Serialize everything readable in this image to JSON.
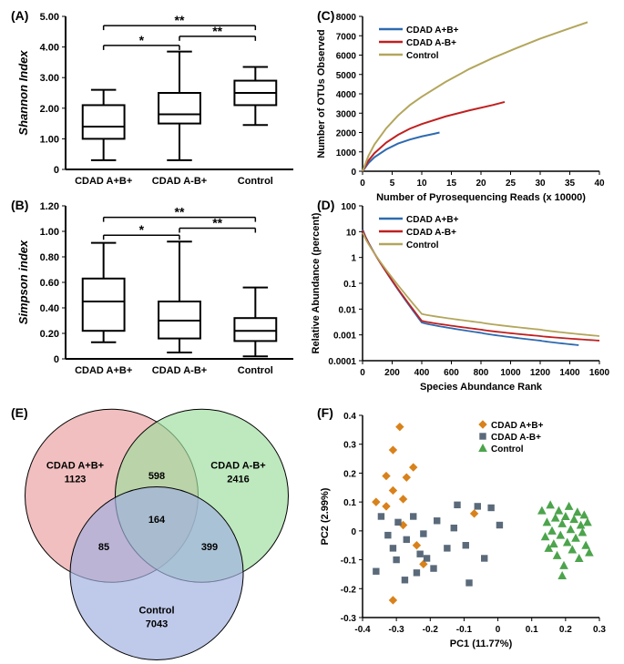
{
  "colors": {
    "blue": "#2e6ab0",
    "red": "#c02020",
    "olive": "#b3a65c",
    "orange": "#d9821b",
    "gray": "#5a6a7a",
    "green": "#4ca44c",
    "venn_red": "#eaa0a0",
    "venn_green": "#9fdd9f",
    "venn_blue": "#a0b0e0",
    "black": "#000000",
    "white": "#ffffff"
  },
  "panelA": {
    "label": "(A)",
    "ylabel": "Shannon Index",
    "ylim": [
      0,
      5.0
    ],
    "yticks": [
      0,
      1.0,
      2.0,
      3.0,
      4.0,
      5.0
    ],
    "ytick_labels": [
      "0",
      "1.00",
      "2.00",
      "3.00",
      "4.00",
      "5.00"
    ],
    "categories": [
      "CDAD A+B+",
      "CDAD A-B+",
      "Control"
    ],
    "boxes": [
      {
        "whisker_low": 0.3,
        "q1": 1.0,
        "median": 1.4,
        "q3": 2.1,
        "whisker_high": 2.6
      },
      {
        "whisker_low": 0.3,
        "q1": 1.5,
        "median": 1.8,
        "q3": 2.5,
        "whisker_high": 3.85
      },
      {
        "whisker_low": 1.45,
        "q1": 2.1,
        "median": 2.5,
        "q3": 2.9,
        "whisker_high": 3.35
      }
    ],
    "sig_bars": [
      {
        "from": 0,
        "to": 1,
        "y": 4.05,
        "label": "*"
      },
      {
        "from": 1,
        "to": 2,
        "y": 4.35,
        "label": "**"
      },
      {
        "from": 0,
        "to": 2,
        "y": 4.7,
        "label": "**"
      }
    ]
  },
  "panelB": {
    "label": "(B)",
    "ylabel": "Simpson index",
    "ylim": [
      0,
      1.2
    ],
    "yticks": [
      0,
      0.2,
      0.4,
      0.6,
      0.8,
      1.0,
      1.2
    ],
    "ytick_labels": [
      "0",
      "0.20",
      "0.40",
      "0.60",
      "0.80",
      "1.00",
      "1.20"
    ],
    "categories": [
      "CDAD A+B+",
      "CDAD A-B+",
      "Control"
    ],
    "boxes": [
      {
        "whisker_low": 0.13,
        "q1": 0.22,
        "median": 0.45,
        "q3": 0.63,
        "whisker_high": 0.91
      },
      {
        "whisker_low": 0.05,
        "q1": 0.16,
        "median": 0.3,
        "q3": 0.45,
        "whisker_high": 0.92
      },
      {
        "whisker_low": 0.02,
        "q1": 0.14,
        "median": 0.22,
        "q3": 0.32,
        "whisker_high": 0.56
      }
    ],
    "sig_bars": [
      {
        "from": 0,
        "to": 1,
        "y": 0.97,
        "label": "*"
      },
      {
        "from": 1,
        "to": 2,
        "y": 1.025,
        "label": "**"
      },
      {
        "from": 0,
        "to": 2,
        "y": 1.11,
        "label": "**"
      }
    ]
  },
  "panelC": {
    "label": "(C)",
    "xlabel": "Number of Pyrosequencing Reads (x 10000)",
    "ylabel": "Number of OTUs Observed",
    "xlim": [
      0,
      40
    ],
    "ylim": [
      0,
      8000
    ],
    "xticks": [
      0,
      5,
      10,
      15,
      20,
      25,
      30,
      35,
      40
    ],
    "yticks": [
      0,
      1000,
      2000,
      3000,
      4000,
      5000,
      6000,
      7000,
      8000
    ],
    "legend": [
      "CDAD A+B+",
      "CDAD A-B+",
      "Control"
    ],
    "legend_colors": [
      "#2e6ab0",
      "#c02020",
      "#b3a65c"
    ],
    "series": [
      {
        "color": "#2e6ab0",
        "points": [
          [
            0,
            0
          ],
          [
            1,
            420
          ],
          [
            2,
            720
          ],
          [
            4,
            1130
          ],
          [
            6,
            1430
          ],
          [
            8,
            1640
          ],
          [
            10,
            1800
          ],
          [
            12,
            1930
          ],
          [
            13,
            2000
          ]
        ]
      },
      {
        "color": "#c02020",
        "points": [
          [
            0,
            0
          ],
          [
            1,
            550
          ],
          [
            2,
            930
          ],
          [
            4,
            1480
          ],
          [
            6,
            1880
          ],
          [
            8,
            2200
          ],
          [
            10,
            2440
          ],
          [
            14,
            2830
          ],
          [
            18,
            3140
          ],
          [
            22,
            3420
          ],
          [
            24,
            3580
          ]
        ]
      },
      {
        "color": "#b3a65c",
        "points": [
          [
            0,
            0
          ],
          [
            1,
            800
          ],
          [
            2,
            1380
          ],
          [
            4,
            2220
          ],
          [
            6,
            2880
          ],
          [
            8,
            3420
          ],
          [
            10,
            3850
          ],
          [
            14,
            4610
          ],
          [
            18,
            5280
          ],
          [
            22,
            5850
          ],
          [
            26,
            6360
          ],
          [
            30,
            6850
          ],
          [
            34,
            7280
          ],
          [
            38,
            7700
          ]
        ]
      }
    ]
  },
  "panelD": {
    "label": "(D)",
    "xlabel": "Species Abundance Rank",
    "ylabel": "Relative Abundance (percent)",
    "xlim": [
      0,
      1600
    ],
    "ylim_log": [
      0.0001,
      100
    ],
    "xticks": [
      0,
      200,
      400,
      600,
      800,
      1000,
      1200,
      1400,
      1600
    ],
    "ytick_labels": [
      "0.0001",
      "0.001",
      "0.01",
      "0.1",
      "1",
      "10",
      "100"
    ],
    "legend": [
      "CDAD A+B+",
      "CDAD A-B+",
      "Control"
    ],
    "legend_colors": [
      "#2e6ab0",
      "#c02020",
      "#b3a65c"
    ]
  },
  "panelE": {
    "label": "(E)",
    "sets": [
      {
        "name": "CDAD A+B+",
        "only": 1123,
        "color": "#eaa0a0"
      },
      {
        "name": "CDAD A-B+",
        "only": 2416,
        "color": "#9fdd9f"
      },
      {
        "name": "Control",
        "only": 7043,
        "color": "#a0b0e0"
      }
    ],
    "intersections": {
      "ab": 598,
      "ac": 85,
      "bc": 399,
      "abc": 164
    }
  },
  "panelF": {
    "label": "(F)",
    "xlabel": "PC1 (11.77%)",
    "ylabel": "PC2 (2.99%)",
    "xlim": [
      -0.4,
      0.3
    ],
    "ylim": [
      -0.3,
      0.4
    ],
    "xticks": [
      -0.4,
      -0.3,
      -0.2,
      -0.1,
      0,
      0.1,
      0.2,
      0.3
    ],
    "yticks": [
      -0.3,
      -0.2,
      -0.1,
      0,
      0.1,
      0.2,
      0.3,
      0.4
    ],
    "legend": [
      "CDAD A+B+",
      "CDAD A-B+",
      "Control"
    ],
    "series": [
      {
        "marker": "diamond",
        "color": "#d9821b",
        "label": "CDAD A+B+",
        "points": [
          [
            -0.33,
            0.19
          ],
          [
            -0.31,
            0.28
          ],
          [
            -0.25,
            0.22
          ],
          [
            -0.29,
            0.36
          ],
          [
            -0.27,
            0.185
          ],
          [
            -0.31,
            0.14
          ],
          [
            -0.28,
            0.11
          ],
          [
            -0.36,
            0.1
          ],
          [
            -0.33,
            0.085
          ],
          [
            -0.28,
            0.02
          ],
          [
            -0.24,
            -0.05
          ],
          [
            -0.22,
            -0.115
          ],
          [
            -0.07,
            0.06
          ],
          [
            -0.31,
            -0.24
          ]
        ]
      },
      {
        "marker": "square",
        "color": "#5a6a7a",
        "label": "CDAD A-B+",
        "points": [
          [
            -0.36,
            -0.14
          ],
          [
            -0.345,
            0.05
          ],
          [
            -0.325,
            -0.015
          ],
          [
            -0.31,
            -0.06
          ],
          [
            -0.3,
            -0.1
          ],
          [
            -0.295,
            0.03
          ],
          [
            -0.275,
            -0.17
          ],
          [
            -0.27,
            -0.03
          ],
          [
            -0.25,
            0.05
          ],
          [
            -0.24,
            -0.145
          ],
          [
            -0.23,
            -0.08
          ],
          [
            -0.22,
            -0.01
          ],
          [
            -0.21,
            -0.095
          ],
          [
            -0.19,
            -0.13
          ],
          [
            -0.18,
            0.035
          ],
          [
            -0.15,
            -0.06
          ],
          [
            -0.13,
            0.01
          ],
          [
            -0.12,
            0.09
          ],
          [
            -0.095,
            -0.05
          ],
          [
            -0.085,
            -0.18
          ],
          [
            -0.06,
            0.085
          ],
          [
            -0.04,
            -0.095
          ],
          [
            -0.02,
            0.08
          ],
          [
            0.005,
            0.02
          ]
        ]
      },
      {
        "marker": "triangle",
        "color": "#4ca44c",
        "label": "Control",
        "points": [
          [
            0.13,
            0.07
          ],
          [
            0.14,
            -0.02
          ],
          [
            0.145,
            0.03
          ],
          [
            0.15,
            -0.06
          ],
          [
            0.155,
            0.09
          ],
          [
            0.16,
            0.0
          ],
          [
            0.165,
            -0.045
          ],
          [
            0.17,
            0.045
          ],
          [
            0.175,
            -0.085
          ],
          [
            0.18,
            0.07
          ],
          [
            0.185,
            -0.015
          ],
          [
            0.19,
            0.025
          ],
          [
            0.195,
            -0.12
          ],
          [
            0.2,
            0.05
          ],
          [
            0.205,
            -0.04
          ],
          [
            0.21,
            0.085
          ],
          [
            0.215,
            0.005
          ],
          [
            0.22,
            -0.065
          ],
          [
            0.225,
            0.04
          ],
          [
            0.23,
            -0.025
          ],
          [
            0.235,
            0.065
          ],
          [
            0.24,
            -0.095
          ],
          [
            0.245,
            0.02
          ],
          [
            0.25,
            -0.005
          ],
          [
            0.255,
            0.055
          ],
          [
            0.26,
            -0.05
          ],
          [
            0.265,
            0.03
          ],
          [
            0.27,
            -0.075
          ],
          [
            0.19,
            -0.155
          ]
        ]
      }
    ]
  }
}
